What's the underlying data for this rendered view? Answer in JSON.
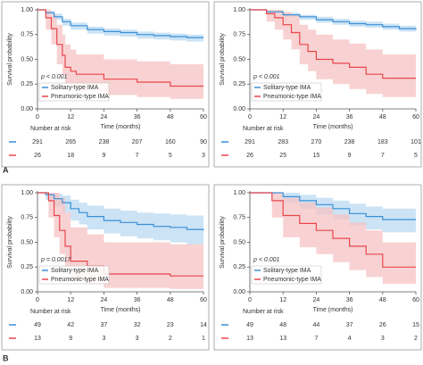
{
  "panel_labels": [
    "A",
    "B"
  ],
  "chart_data": [
    {
      "type": "step",
      "ylabel": "Survival probability",
      "xlabel": "Time (months)",
      "annotation": "p < 0.001",
      "xlim": [
        0,
        60
      ],
      "ylim": [
        0,
        1
      ],
      "xticks": [
        0,
        12,
        24,
        36,
        48,
        60
      ],
      "yticks": [
        {
          "value": 0,
          "label": "0.00"
        },
        {
          "value": 0.25,
          "label": "0.25"
        },
        {
          "value": 0.5,
          "label": "0.50"
        },
        {
          "value": 0.75,
          "label": "0.75"
        },
        {
          "value": 1,
          "label": "1.00"
        }
      ],
      "series": [
        {
          "name": "Solitary-type IMA",
          "color": "#3a8fd6",
          "band_color": "#b9d9f2",
          "x": [
            0,
            3,
            6,
            9,
            12,
            18,
            24,
            30,
            36,
            42,
            48,
            54,
            60
          ],
          "values": [
            1,
            0.97,
            0.93,
            0.88,
            0.84,
            0.8,
            0.78,
            0.77,
            0.75,
            0.74,
            0.73,
            0.72,
            0.72
          ],
          "lower": [
            1,
            0.95,
            0.9,
            0.84,
            0.8,
            0.76,
            0.74,
            0.73,
            0.71,
            0.7,
            0.69,
            0.68,
            0.68
          ],
          "upper": [
            1,
            0.99,
            0.96,
            0.91,
            0.87,
            0.83,
            0.81,
            0.8,
            0.78,
            0.77,
            0.76,
            0.75,
            0.75
          ]
        },
        {
          "name": "Pneumonic-type IMA",
          "color": "#e8464c",
          "band_color": "#f6c3c3",
          "x": [
            0,
            3,
            5,
            7,
            9,
            10,
            12,
            14,
            24,
            36,
            48,
            60
          ],
          "values": [
            1,
            0.92,
            0.81,
            0.65,
            0.54,
            0.42,
            0.38,
            0.35,
            0.3,
            0.27,
            0.23,
            0.23
          ],
          "lower": [
            1,
            0.8,
            0.65,
            0.45,
            0.35,
            0.25,
            0.2,
            0.18,
            0.14,
            0.12,
            0.1,
            0.1
          ],
          "upper": [
            1,
            1,
            0.95,
            0.85,
            0.75,
            0.65,
            0.6,
            0.55,
            0.5,
            0.48,
            0.45,
            0.45
          ]
        }
      ],
      "risk_table": {
        "title": "Number at risk",
        "rows": [
          [
            291,
            265,
            238,
            207,
            160,
            90
          ],
          [
            26,
            18,
            9,
            7,
            5,
            3
          ]
        ]
      }
    },
    {
      "type": "step",
      "ylabel": "Survival probability",
      "xlabel": "Time (months)",
      "annotation": "p < 0.001",
      "xlim": [
        0,
        60
      ],
      "ylim": [
        0,
        1
      ],
      "xticks": [
        0,
        12,
        24,
        36,
        48,
        60
      ],
      "yticks": [
        {
          "value": 0,
          "label": "0.00"
        },
        {
          "value": 0.25,
          "label": "0.25"
        },
        {
          "value": 0.5,
          "label": "0.50"
        },
        {
          "value": 0.75,
          "label": "0.75"
        },
        {
          "value": 1,
          "label": "1.00"
        }
      ],
      "series": [
        {
          "name": "Solitary-type IMA",
          "color": "#3a8fd6",
          "band_color": "#b9d9f2",
          "x": [
            0,
            6,
            12,
            18,
            24,
            30,
            36,
            42,
            48,
            54,
            60
          ],
          "values": [
            1,
            0.98,
            0.95,
            0.93,
            0.9,
            0.88,
            0.86,
            0.85,
            0.83,
            0.81,
            0.8
          ],
          "lower": [
            1,
            0.96,
            0.93,
            0.9,
            0.87,
            0.85,
            0.83,
            0.82,
            0.8,
            0.78,
            0.77
          ],
          "upper": [
            1,
            0.99,
            0.97,
            0.95,
            0.93,
            0.91,
            0.89,
            0.88,
            0.86,
            0.84,
            0.83
          ]
        },
        {
          "name": "Pneumonic-type IMA",
          "color": "#e8464c",
          "band_color": "#f6c3c3",
          "x": [
            0,
            6,
            9,
            12,
            15,
            18,
            21,
            24,
            30,
            36,
            42,
            48,
            60
          ],
          "values": [
            1,
            0.96,
            0.92,
            0.85,
            0.77,
            0.65,
            0.58,
            0.5,
            0.46,
            0.42,
            0.35,
            0.31,
            0.31
          ],
          "lower": [
            1,
            0.88,
            0.8,
            0.7,
            0.6,
            0.45,
            0.38,
            0.3,
            0.25,
            0.2,
            0.15,
            0.12,
            0.12
          ],
          "upper": [
            1,
            1,
            1,
            0.98,
            0.95,
            0.85,
            0.8,
            0.75,
            0.7,
            0.66,
            0.6,
            0.55,
            0.55
          ]
        }
      ],
      "risk_table": {
        "title": "Number at risk",
        "rows": [
          [
            291,
            283,
            270,
            238,
            183,
            101
          ],
          [
            26,
            25,
            15,
            9,
            7,
            5
          ]
        ]
      }
    },
    {
      "type": "step",
      "ylabel": "Survival probability",
      "xlabel": "Time (months)",
      "annotation": "p = 0.0017",
      "xlim": [
        0,
        60
      ],
      "ylim": [
        0,
        1
      ],
      "xticks": [
        0,
        12,
        24,
        36,
        48,
        60
      ],
      "yticks": [
        {
          "value": 0,
          "label": "0.00"
        },
        {
          "value": 0.25,
          "label": "0.25"
        },
        {
          "value": 0.5,
          "label": "0.50"
        },
        {
          "value": 0.75,
          "label": "0.75"
        },
        {
          "value": 1,
          "label": "1.00"
        }
      ],
      "series": [
        {
          "name": "Solitary-type IMA",
          "color": "#3a8fd6",
          "band_color": "#b9d9f2",
          "x": [
            0,
            3,
            6,
            9,
            12,
            15,
            18,
            24,
            30,
            36,
            42,
            48,
            54,
            60
          ],
          "values": [
            1,
            0.98,
            0.94,
            0.9,
            0.84,
            0.8,
            0.76,
            0.72,
            0.7,
            0.68,
            0.66,
            0.65,
            0.63,
            0.62
          ],
          "lower": [
            1,
            0.93,
            0.86,
            0.8,
            0.72,
            0.68,
            0.63,
            0.59,
            0.56,
            0.54,
            0.52,
            0.5,
            0.48,
            0.47
          ],
          "upper": [
            1,
            1,
            0.99,
            0.97,
            0.93,
            0.9,
            0.87,
            0.84,
            0.82,
            0.8,
            0.79,
            0.78,
            0.77,
            0.76
          ]
        },
        {
          "name": "Pneumonic-type IMA",
          "color": "#e8464c",
          "band_color": "#f6c3c3",
          "x": [
            0,
            4,
            6,
            8,
            10,
            12,
            18,
            24,
            48,
            60
          ],
          "values": [
            1,
            0.92,
            0.77,
            0.62,
            0.46,
            0.31,
            0.26,
            0.18,
            0.16,
            0.16
          ],
          "lower": [
            1,
            0.75,
            0.55,
            0.38,
            0.24,
            0.12,
            0.08,
            0.04,
            0.03,
            0.03
          ],
          "upper": [
            1,
            1,
            1,
            0.95,
            0.8,
            0.65,
            0.58,
            0.5,
            0.48,
            0.48
          ]
        }
      ],
      "risk_table": {
        "title": "Number at risk",
        "rows": [
          [
            49,
            42,
            37,
            32,
            23,
            14
          ],
          [
            13,
            9,
            3,
            3,
            2,
            1
          ]
        ]
      }
    },
    {
      "type": "step",
      "ylabel": "Survival probability",
      "xlabel": "Time (months)",
      "annotation": "p < 0.001",
      "xlim": [
        0,
        60
      ],
      "ylim": [
        0,
        1
      ],
      "xticks": [
        0,
        12,
        24,
        36,
        48,
        60
      ],
      "yticks": [
        {
          "value": 0,
          "label": "0.00"
        },
        {
          "value": 0.25,
          "label": "0.25"
        },
        {
          "value": 0.5,
          "label": "0.50"
        },
        {
          "value": 0.75,
          "label": "0.75"
        },
        {
          "value": 1,
          "label": "1.00"
        }
      ],
      "series": [
        {
          "name": "Solitary-type IMA",
          "color": "#3a8fd6",
          "band_color": "#b9d9f2",
          "x": [
            0,
            12,
            18,
            24,
            30,
            36,
            42,
            48,
            60
          ],
          "values": [
            1,
            0.96,
            0.92,
            0.88,
            0.84,
            0.79,
            0.76,
            0.73,
            0.73
          ],
          "lower": [
            1,
            0.9,
            0.84,
            0.78,
            0.73,
            0.67,
            0.63,
            0.6,
            0.6
          ],
          "upper": [
            1,
            1,
            0.98,
            0.95,
            0.92,
            0.89,
            0.86,
            0.84,
            0.84
          ]
        },
        {
          "name": "Pneumonic-type IMA",
          "color": "#e8464c",
          "band_color": "#f6c3c3",
          "x": [
            0,
            8,
            12,
            18,
            24,
            30,
            36,
            42,
            48,
            60
          ],
          "values": [
            1,
            0.92,
            0.77,
            0.69,
            0.62,
            0.54,
            0.46,
            0.38,
            0.25,
            0.25
          ],
          "lower": [
            1,
            0.75,
            0.55,
            0.45,
            0.38,
            0.3,
            0.22,
            0.15,
            0.08,
            0.08
          ],
          "upper": [
            1,
            1,
            0.95,
            0.9,
            0.85,
            0.78,
            0.7,
            0.62,
            0.5,
            0.5
          ]
        }
      ],
      "risk_table": {
        "title": "Number at risk",
        "rows": [
          [
            49,
            48,
            44,
            37,
            26,
            15
          ],
          [
            13,
            13,
            7,
            4,
            3,
            2
          ]
        ]
      }
    }
  ]
}
